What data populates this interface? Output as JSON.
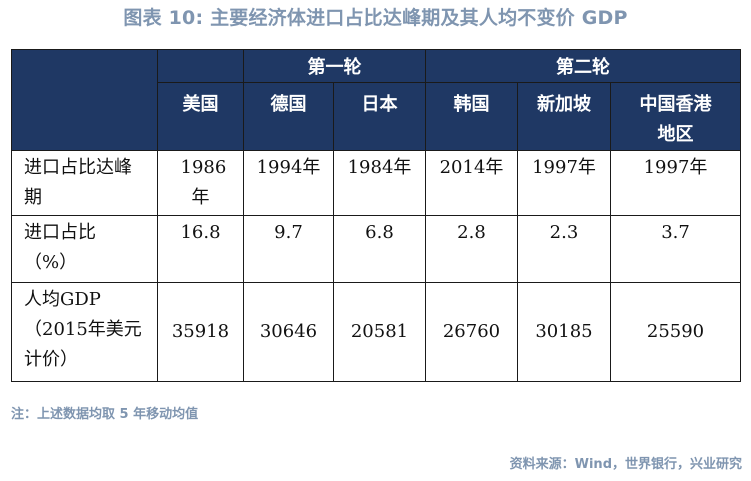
{
  "figure": {
    "title": "图表 10:  主要经济体进口占比达峰期及其人均不变价 GDP"
  },
  "table": {
    "groups": [
      "第一轮",
      "第二轮"
    ],
    "countries": [
      "美国",
      "德国",
      "日本",
      "韩国",
      "新加坡",
      "中国香港地区"
    ],
    "rows": {
      "peak": {
        "label": "进口占比达峰期",
        "values": [
          "1986年",
          "1994年",
          "1984年",
          "2014年",
          "1997年",
          "1997年"
        ]
      },
      "share": {
        "label": "进口占比（%）",
        "values": [
          "16.8",
          "9.7",
          "6.8",
          "2.8",
          "2.3",
          "3.7"
        ]
      },
      "gdp": {
        "label": "人均GDP（2015年美元计价）",
        "values": [
          "35918",
          "30646",
          "20581",
          "26760",
          "30185",
          "25590"
        ]
      }
    }
  },
  "footnote": "注：上述数据均取 5 年移动均值",
  "source": "资料来源：Wind，世界银行，兴业研究",
  "colors": {
    "header_bg": "#1f3864",
    "header_text": "#ffffff",
    "caption_text": "#7f95b0",
    "border": "#1a1a1a"
  }
}
